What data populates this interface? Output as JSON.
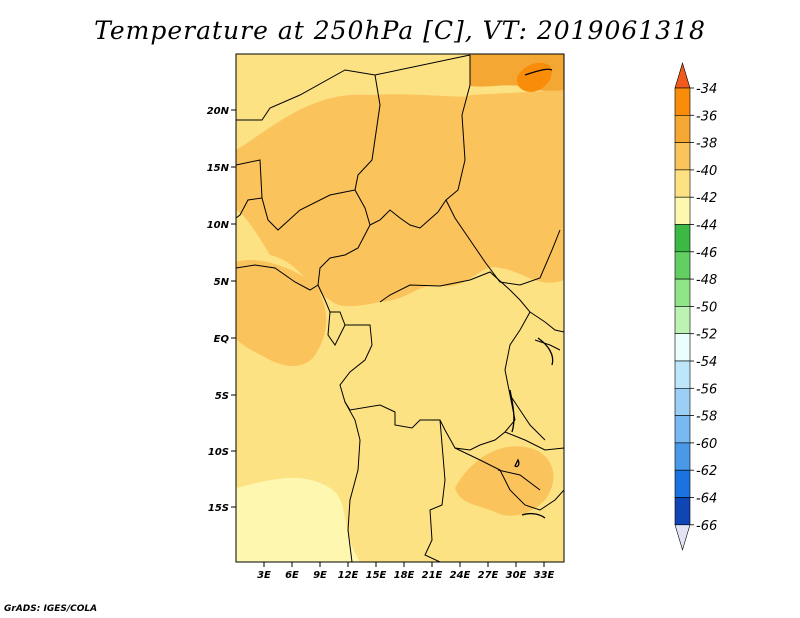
{
  "title": "Temperature at 250hPa [C], VT: 2019061318",
  "credit": "GrADS: IGES/COLA",
  "map": {
    "lon_ticks": [
      "3E",
      "6E",
      "9E",
      "12E",
      "15E",
      "18E",
      "21E",
      "24E",
      "27E",
      "30E",
      "33E"
    ],
    "lat_ticks": [
      "20N",
      "15N",
      "10N",
      "5N",
      "EQ",
      "5S",
      "10S",
      "15S"
    ]
  },
  "colorbar": {
    "labels": [
      "-34",
      "-36",
      "-38",
      "-40",
      "-42",
      "-44",
      "-46",
      "-48",
      "-50",
      "-52",
      "-54",
      "-56",
      "-58",
      "-60",
      "-62",
      "-64",
      "-66"
    ],
    "colors": [
      "#f05a1c",
      "#f98c08",
      "#f5a733",
      "#fac35c",
      "#fde284",
      "#fdf7b0",
      "#3cb944",
      "#63cf63",
      "#91e589",
      "#bcf3b4",
      "#ebfefe",
      "#bde6fa",
      "#9bcff6",
      "#79b9f1",
      "#4a99e8",
      "#1a73de",
      "#1045b4",
      "#0f1475",
      "#e3e3f6"
    ]
  },
  "fields": {
    "color_minus40": "#fde284",
    "color_minus42": "#fdf7b0",
    "color_minus38": "#fac35c",
    "color_minus36": "#f5a733",
    "color_minus34": "#f98c08"
  }
}
